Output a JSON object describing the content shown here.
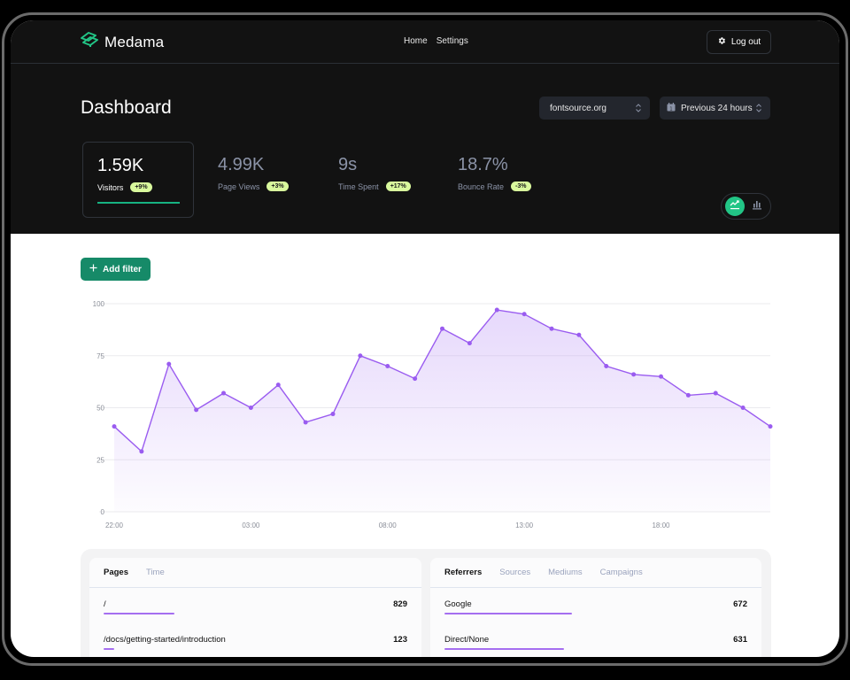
{
  "app": {
    "name": "Medama",
    "brand_color": "#22c586"
  },
  "nav": {
    "links": [
      "Home",
      "Settings"
    ],
    "logout_label": "Log out"
  },
  "header": {
    "title": "Dashboard",
    "site_select": {
      "value": "fontsource.org"
    },
    "range_select": {
      "value": "Previous 24 hours",
      "icon_day": "1"
    }
  },
  "stats": [
    {
      "value": "1.59K",
      "label": "Visitors",
      "change": "+9%",
      "active": true
    },
    {
      "value": "4.99K",
      "label": "Page Views",
      "change": "+3%",
      "active": false
    },
    {
      "value": "9s",
      "label": "Time Spent",
      "change": "+17%",
      "active": false
    },
    {
      "value": "18.7%",
      "label": "Bounce Rate",
      "change": "-3%",
      "active": false
    }
  ],
  "chart_toggle": {
    "options": [
      "line-chart-icon",
      "bar-chart-icon"
    ],
    "selected": "line-chart-icon"
  },
  "filter": {
    "add_label": "Add filter"
  },
  "chart_data": {
    "type": "area",
    "title": "",
    "xlabel": "",
    "ylabel": "",
    "series": [
      {
        "name": "Visitors",
        "color": "#9a5cf0",
        "values": [
          41,
          29,
          71,
          49,
          57,
          50,
          61,
          43,
          47,
          75,
          70,
          64,
          88,
          81,
          97,
          95,
          88,
          85,
          70,
          66,
          65,
          56,
          57,
          50,
          41
        ]
      }
    ],
    "x": [
      "22:00",
      "23:00",
      "00:00",
      "01:00",
      "02:00",
      "03:00",
      "04:00",
      "05:00",
      "06:00",
      "07:00",
      "08:00",
      "09:00",
      "10:00",
      "11:00",
      "12:00",
      "13:00",
      "14:00",
      "15:00",
      "16:00",
      "17:00",
      "18:00",
      "19:00",
      "20:00",
      "21:00",
      "22:00"
    ],
    "xticks": [
      "22:00",
      "03:00",
      "08:00",
      "13:00",
      "18:00"
    ],
    "yticks": [
      0,
      25,
      50,
      75,
      100
    ],
    "ylim": [
      0,
      100
    ],
    "grid": true
  },
  "panels": {
    "pages": {
      "tabs": [
        "Pages",
        "Time"
      ],
      "active_tab": "Pages",
      "rows": [
        {
          "label": "/",
          "value": "829",
          "bar_pct": 100
        },
        {
          "label": "/docs/getting-started/introduction",
          "value": "123",
          "bar_pct": 15
        }
      ]
    },
    "referrers": {
      "tabs": [
        "Referrers",
        "Sources",
        "Mediums",
        "Campaigns"
      ],
      "active_tab": "Referrers",
      "rows": [
        {
          "label": "Google",
          "value": "672",
          "bar_pct": 100
        },
        {
          "label": "Direct/None",
          "value": "631",
          "bar_pct": 94
        }
      ]
    }
  }
}
